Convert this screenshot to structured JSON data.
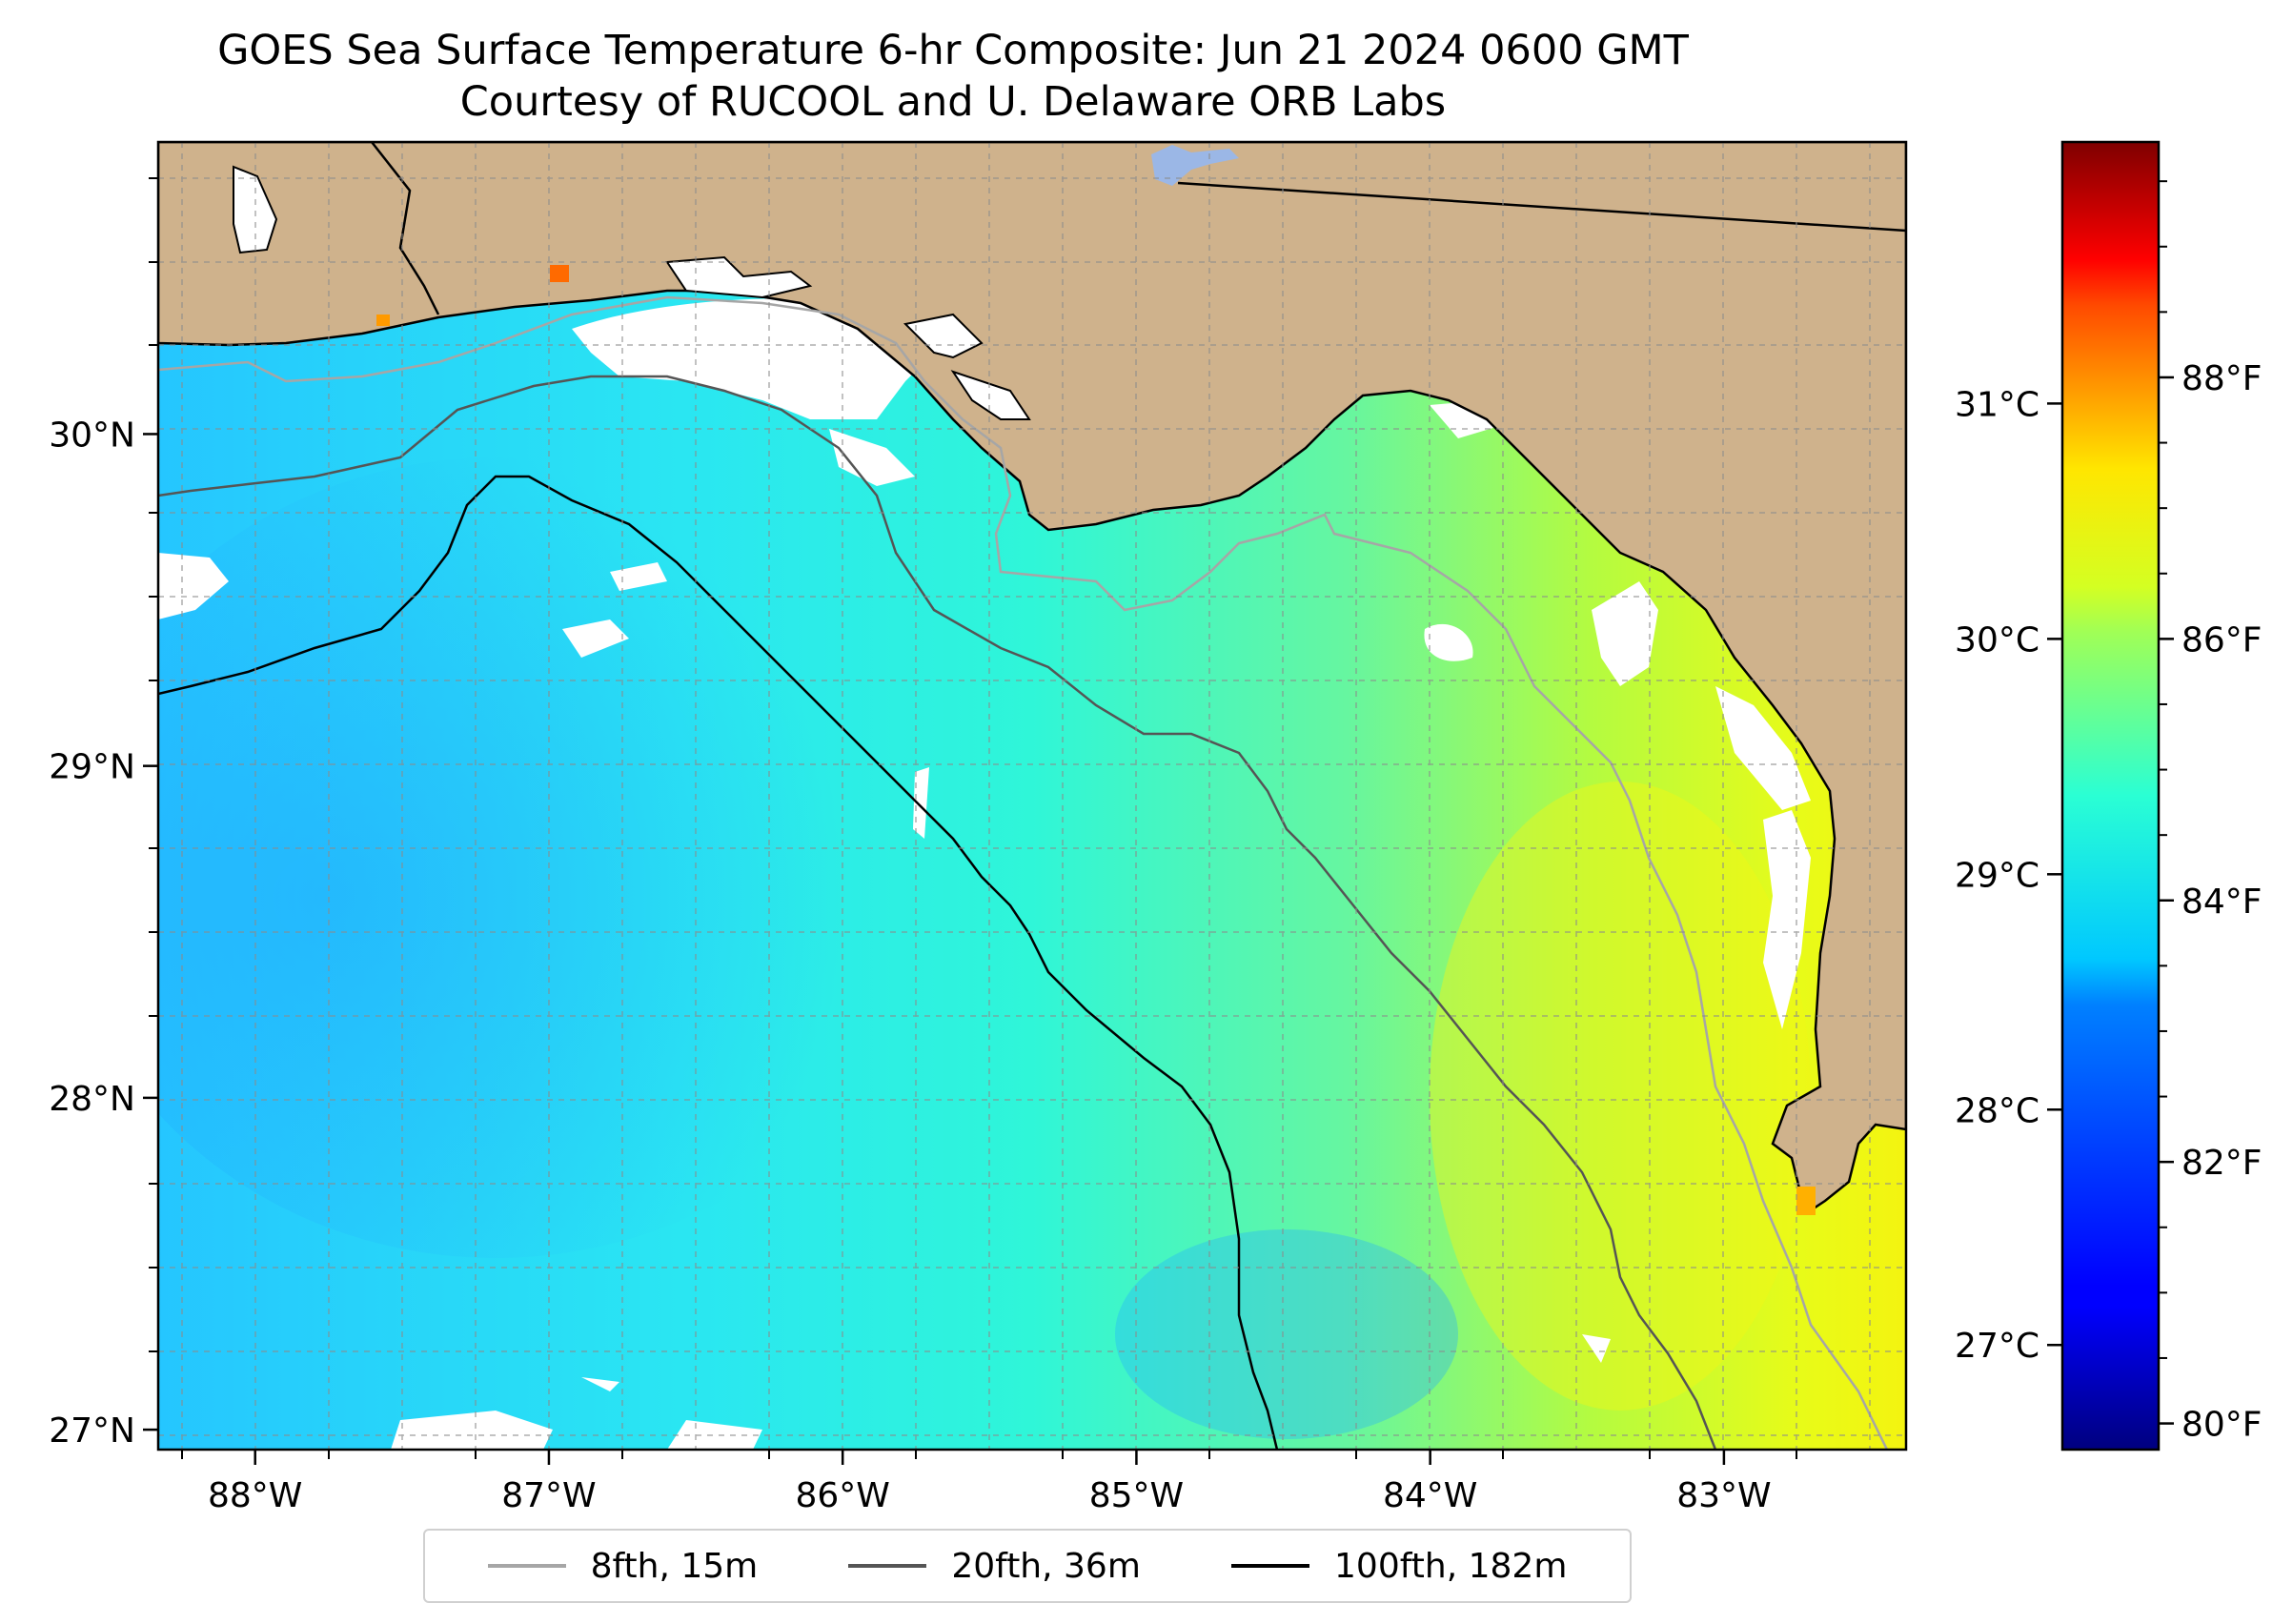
{
  "title": {
    "line1": "GOES Sea Surface Temperature 6-hr Composite: Jun 21 2024 0600 GMT",
    "line2": "Courtesy of RUCOOL and U. Delaware ORB Labs"
  },
  "map": {
    "lon_range": [
      -88.33,
      -82.38
    ],
    "lat_range": [
      26.94,
      30.88
    ],
    "lon_ticks": [
      {
        "value": -88,
        "label": "88°W"
      },
      {
        "value": -87,
        "label": "87°W"
      },
      {
        "value": -86,
        "label": "86°W"
      },
      {
        "value": -85,
        "label": "85°W"
      },
      {
        "value": -84,
        "label": "84°W"
      },
      {
        "value": -83,
        "label": "83°W"
      }
    ],
    "lat_ticks": [
      {
        "value": 27,
        "label": "27°N"
      },
      {
        "value": 28,
        "label": "28°N"
      },
      {
        "value": 29,
        "label": "29°N"
      },
      {
        "value": 30,
        "label": "30°N"
      }
    ],
    "colors": {
      "land": "#cfb28c",
      "no_data": "#ffffff",
      "lake": "#9bb7e6"
    }
  },
  "colorbar": {
    "colormap": "jet",
    "range_f": [
      79.8,
      89.8
    ],
    "f_ticks": [
      {
        "value": 80,
        "label": "80°F"
      },
      {
        "value": 82,
        "label": "82°F"
      },
      {
        "value": 84,
        "label": "84°F"
      },
      {
        "value": 86,
        "label": "86°F"
      },
      {
        "value": 88,
        "label": "88°F"
      }
    ],
    "c_ticks": [
      {
        "value": 27,
        "label": "27°C"
      },
      {
        "value": 28,
        "label": "28°C"
      },
      {
        "value": 29,
        "label": "29°C"
      },
      {
        "value": 30,
        "label": "30°C"
      },
      {
        "value": 31,
        "label": "31°C"
      }
    ]
  },
  "legend": {
    "items": [
      {
        "label": "8fth, 15m",
        "color": "#a6a6a6"
      },
      {
        "label": "20fth, 36m",
        "color": "#555555"
      },
      {
        "label": "100fth, 182m",
        "color": "#000000"
      }
    ]
  }
}
